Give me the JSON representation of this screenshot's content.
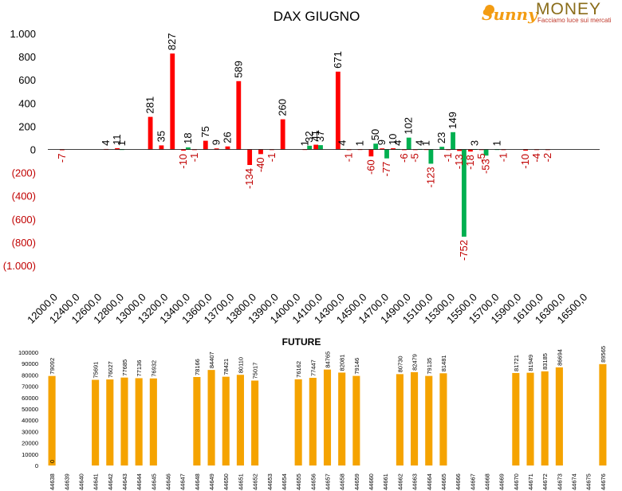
{
  "logo": {
    "brand_left": "Sunny",
    "brand_right": "MONEY",
    "tagline": "Facciamo luce sui mercati",
    "colors": {
      "sunny": "#f39c12",
      "money": "#8a6d1a",
      "tagline": "#c0392b"
    }
  },
  "colors": {
    "red": "#ff0000",
    "green": "#00b050",
    "orange": "#f5a300",
    "axis": "#000000",
    "neg_label": "#c00000"
  },
  "chart_data": [
    {
      "type": "bar",
      "title": "DAX GIUGNO",
      "ylim": [
        -1000,
        1000
      ],
      "y_ticks": [
        "1.000",
        "800",
        "600",
        "400",
        "200",
        "0",
        "(200)",
        "(400)",
        "(600)",
        "(800)",
        "(1.000)"
      ],
      "x_tick_labels": [
        "12000,0",
        "12400,0",
        "12600,0",
        "12800,0",
        "13000,0",
        "13200,0",
        "13400,0",
        "13600,0",
        "13700,0",
        "13800,0",
        "13900,0",
        "14000,0",
        "14100,0",
        "14300,0",
        "14500,0",
        "14700,0",
        "14900,0",
        "15100,0",
        "15300,0",
        "15500,0",
        "15700,0",
        "15900,0",
        "16100,0",
        "16300,0",
        "16500,0"
      ],
      "num_slots": 50,
      "series": [
        {
          "color": "red",
          "points": [
            [
              1,
              -7
            ],
            [
              5,
              4
            ],
            [
              6,
              11
            ],
            [
              9,
              281
            ],
            [
              10,
              35
            ],
            [
              11,
              827
            ],
            [
              12,
              -10
            ],
            [
              13,
              -1
            ],
            [
              14,
              75
            ],
            [
              15,
              9
            ],
            [
              16,
              26
            ],
            [
              17,
              589
            ],
            [
              18,
              -134
            ],
            [
              19,
              -40
            ],
            [
              20,
              -1
            ],
            [
              21,
              260
            ],
            [
              23,
              1
            ],
            [
              24,
              41
            ],
            [
              26,
              671
            ],
            [
              27,
              -1
            ],
            [
              28,
              1
            ],
            [
              29,
              -60
            ],
            [
              30,
              9
            ],
            [
              31,
              10
            ],
            [
              32,
              -6
            ],
            [
              33,
              -5
            ],
            [
              34,
              1
            ],
            [
              36,
              -1
            ],
            [
              37,
              -13
            ],
            [
              38,
              -18
            ],
            [
              39,
              -5
            ],
            [
              41,
              -1
            ],
            [
              43,
              -10
            ],
            [
              44,
              -4
            ],
            [
              45,
              -2
            ]
          ]
        },
        {
          "color": "green",
          "points": [
            [
              6,
              1
            ],
            [
              12,
              18
            ],
            [
              23,
              32
            ],
            [
              24,
              37
            ],
            [
              26,
              4
            ],
            [
              29,
              50
            ],
            [
              30,
              -77
            ],
            [
              31,
              4
            ],
            [
              32,
              102
            ],
            [
              33,
              4
            ],
            [
              34,
              -123
            ],
            [
              35,
              23
            ],
            [
              36,
              149
            ],
            [
              37,
              -752
            ],
            [
              38,
              3
            ],
            [
              39,
              -53
            ],
            [
              40,
              1
            ]
          ]
        }
      ]
    },
    {
      "type": "bar",
      "title": "FUTURE",
      "ylim": [
        0,
        100000
      ],
      "y_ticks": [
        "100000",
        "90000",
        "80000",
        "70000",
        "60000",
        "50000",
        "40000",
        "30000",
        "20000",
        "10000",
        "0"
      ],
      "categories": [
        "44638",
        "44639",
        "44640",
        "44641",
        "44642",
        "44643",
        "44644",
        "44645",
        "44646",
        "44647",
        "44648",
        "44649",
        "44650",
        "44651",
        "44652",
        "44653",
        "44654",
        "44655",
        "44656",
        "44657",
        "44658",
        "44659",
        "44660",
        "44661",
        "44662",
        "44663",
        "44664",
        "44665",
        "44666",
        "44667",
        "44668",
        "44669",
        "44670",
        "44671",
        "44672",
        "44673",
        "44674",
        "44675",
        "44676"
      ],
      "values": [
        79092,
        0,
        0,
        75691,
        76027,
        77685,
        77136,
        76932,
        0,
        0,
        78166,
        84407,
        78421,
        80110,
        75017,
        0,
        0,
        76162,
        77447,
        84765,
        82081,
        79146,
        0,
        0,
        80730,
        82479,
        79135,
        81481,
        0,
        0,
        0,
        0,
        81721,
        81949,
        83185,
        86694,
        0,
        0,
        89565
      ],
      "extra_labels": [
        {
          "index": 0,
          "text": "0"
        }
      ]
    }
  ]
}
